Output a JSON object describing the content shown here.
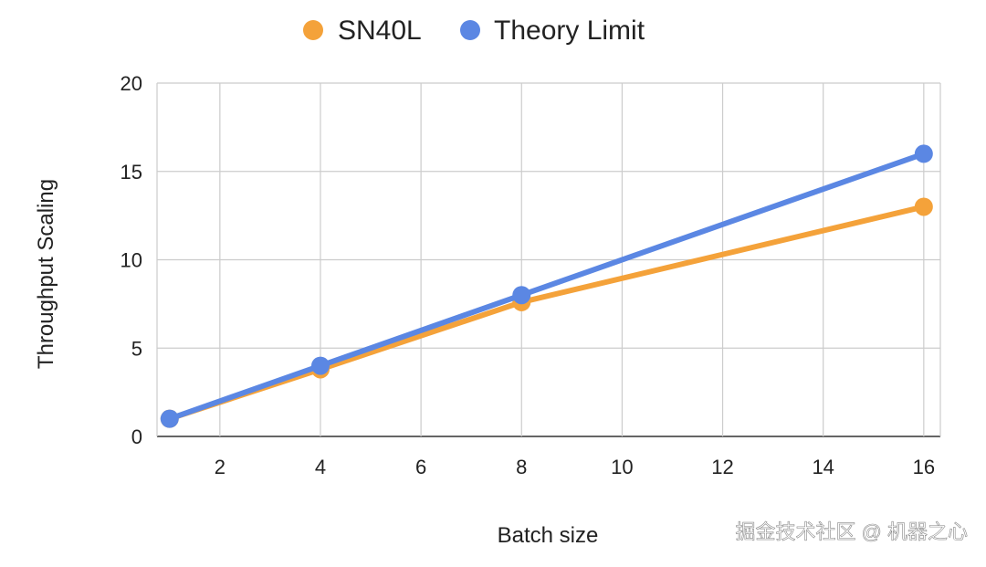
{
  "chart_data": {
    "type": "line",
    "title": "",
    "xlabel": "Batch size",
    "ylabel": "Throughput Scaling",
    "xlim": [
      0.75,
      16.33
    ],
    "ylim": [
      0,
      20
    ],
    "x_ticks": [
      2,
      4,
      6,
      8,
      10,
      12,
      14,
      16
    ],
    "y_ticks": [
      0,
      5,
      10,
      15,
      20
    ],
    "grid": true,
    "legend_position": "top",
    "x": [
      1,
      4,
      8,
      16
    ],
    "series": [
      {
        "name": "SN40L",
        "values": [
          1,
          3.8,
          7.6,
          13.0
        ],
        "color": "#f4a23a"
      },
      {
        "name": "Theory Limit",
        "values": [
          1,
          4,
          8,
          16
        ],
        "color": "#5b87e3"
      }
    ]
  },
  "watermark": "掘金技术社区 @ 机器之心"
}
